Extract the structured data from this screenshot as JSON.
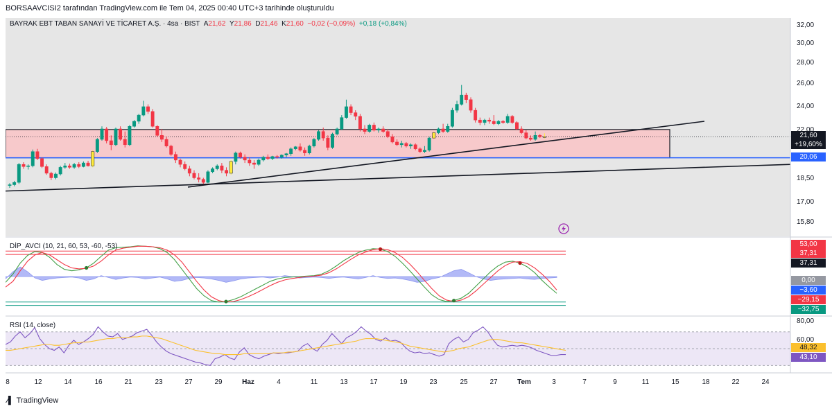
{
  "caption": "BORSAAVCISI2 tarafından TradingView.com ile Tem 04, 2025 00:40 UTC+3 tarihinde oluşturuldu",
  "brand": "TradingView",
  "colors": {
    "up": "#089981",
    "down": "#f23645",
    "doji": "#ffeb3b",
    "zone": "#f7c9cb",
    "support": "#2962ff",
    "rsi": "#7e57c2",
    "rsi_ma": "#fbc02d"
  },
  "main": {
    "symbol": "BAYRAK EBT TABAN SANAYİ VE TİCARET A.Ş. · 4sa · BIST",
    "open_label": "A",
    "open": "21,62",
    "high_label": "Y",
    "high": "21,86",
    "low_label": "D",
    "low": "21,46",
    "close_label": "K",
    "close": "21,60",
    "change": "−0,02 (−0,09%)",
    "vol_change": "+0,18 (+0,84%)",
    "price_badge": "21,60",
    "pct_badge": "+19,60%",
    "support_badge": "20,06",
    "axis_ticks": [
      "32,00",
      "30,00",
      "28,00",
      "26,00",
      "24,00",
      "22,00",
      "18,50",
      "17,00",
      "15,80"
    ]
  },
  "dip": {
    "label": "DİP_AVCI (10, 21, 60, 53, -60, -53)",
    "badges": [
      "53,00",
      "37,31",
      "37,31",
      "0,00",
      "−3,60",
      "−29,15",
      "−32,75"
    ]
  },
  "rsi": {
    "label": "RSI (14, close)",
    "axis_ticks": [
      "80,00",
      "60,00"
    ],
    "badges": [
      "48,32",
      "43,10"
    ]
  },
  "x_ticks": [
    "8",
    "12",
    "14",
    "16",
    "21",
    "23",
    "27",
    "29",
    "Haz",
    "4",
    "11",
    "13",
    "17",
    "19",
    "23",
    "25",
    "27",
    "Tem",
    "3",
    "7",
    "9",
    "11",
    "15",
    "18",
    "22",
    "24"
  ],
  "chart_data": [
    {
      "type": "candlestick",
      "title": "BAYRAK EBT TABAN SANAYİ VE TİCARET A.Ş. · 4sa · BIST",
      "ylim": [
        15.3,
        32.6
      ],
      "y_scale": "log",
      "grid": false,
      "candles": [
        [
          18.2,
          18.35,
          18.05,
          18.25
        ],
        [
          18.25,
          18.5,
          18.15,
          18.4
        ],
        [
          18.4,
          19.7,
          18.3,
          19.6
        ],
        [
          19.6,
          19.75,
          19.3,
          19.45
        ],
        [
          19.45,
          19.6,
          19.25,
          19.5
        ],
        [
          19.5,
          20.65,
          19.4,
          20.5
        ],
        [
          20.5,
          20.7,
          19.9,
          20.0
        ],
        [
          20.0,
          20.1,
          19.35,
          19.45
        ],
        [
          19.45,
          19.6,
          18.9,
          19.0
        ],
        [
          19.0,
          19.1,
          18.55,
          18.7
        ],
        [
          18.7,
          19.05,
          18.6,
          18.95
        ],
        [
          18.95,
          19.5,
          18.85,
          19.4
        ],
        [
          19.4,
          19.7,
          19.3,
          19.5
        ],
        [
          19.5,
          19.65,
          19.3,
          19.4
        ],
        [
          19.4,
          19.7,
          19.3,
          19.6
        ],
        [
          19.6,
          19.75,
          19.35,
          19.45
        ],
        [
          19.45,
          19.8,
          19.4,
          19.7
        ],
        [
          19.7,
          19.85,
          19.45,
          19.5
        ],
        [
          19.5,
          20.6,
          19.4,
          20.5
        ],
        [
          20.5,
          21.5,
          20.4,
          21.4
        ],
        [
          21.4,
          22.4,
          21.3,
          22.2
        ],
        [
          22.2,
          22.35,
          21.1,
          21.3
        ],
        [
          21.3,
          21.7,
          20.6,
          21.0
        ],
        [
          21.0,
          22.3,
          20.9,
          22.2
        ],
        [
          22.2,
          22.4,
          21.3,
          21.4
        ],
        [
          21.4,
          22.0,
          20.8,
          21.0
        ],
        [
          21.0,
          22.5,
          20.9,
          22.4
        ],
        [
          22.4,
          22.9,
          22.3,
          22.8
        ],
        [
          22.8,
          23.4,
          22.6,
          23.3
        ],
        [
          23.3,
          24.5,
          23.2,
          24.0
        ],
        [
          24.0,
          24.2,
          23.4,
          23.6
        ],
        [
          23.6,
          23.8,
          22.3,
          22.4
        ],
        [
          22.4,
          22.5,
          21.6,
          21.7
        ],
        [
          21.7,
          22.2,
          21.2,
          21.4
        ],
        [
          21.4,
          21.6,
          20.8,
          20.9
        ],
        [
          20.9,
          21.0,
          20.2,
          20.3
        ],
        [
          20.3,
          20.5,
          19.7,
          19.9
        ],
        [
          19.9,
          20.0,
          19.4,
          19.6
        ],
        [
          19.6,
          19.8,
          19.2,
          19.3
        ],
        [
          19.3,
          19.5,
          18.8,
          19.0
        ],
        [
          19.0,
          19.2,
          18.6,
          18.7
        ],
        [
          18.7,
          19.0,
          18.4,
          18.6
        ],
        [
          18.6,
          18.7,
          18.3,
          18.4
        ],
        [
          18.4,
          19.2,
          18.35,
          19.1
        ],
        [
          19.1,
          19.4,
          19.0,
          19.3
        ],
        [
          19.3,
          19.6,
          19.2,
          19.5
        ],
        [
          19.5,
          19.7,
          19.0,
          19.2
        ],
        [
          19.2,
          19.4,
          18.8,
          19.0
        ],
        [
          19.0,
          19.9,
          18.9,
          19.8
        ],
        [
          19.8,
          20.5,
          19.6,
          20.4
        ],
        [
          20.4,
          20.5,
          20.0,
          20.1
        ],
        [
          20.1,
          20.3,
          19.7,
          19.9
        ],
        [
          19.9,
          20.1,
          19.5,
          19.7
        ],
        [
          19.7,
          19.9,
          19.3,
          19.6
        ],
        [
          19.6,
          20.0,
          19.5,
          19.9
        ],
        [
          19.9,
          20.2,
          19.8,
          20.1
        ],
        [
          20.1,
          20.3,
          19.9,
          20.0
        ],
        [
          20.0,
          20.2,
          19.9,
          20.15
        ],
        [
          20.15,
          20.25,
          20.0,
          20.1
        ],
        [
          20.1,
          20.3,
          20.0,
          20.25
        ],
        [
          20.25,
          20.4,
          20.1,
          20.35
        ],
        [
          20.35,
          20.8,
          20.2,
          20.7
        ],
        [
          20.7,
          20.9,
          20.6,
          20.85
        ],
        [
          20.85,
          21.1,
          20.5,
          20.6
        ],
        [
          20.6,
          20.8,
          20.2,
          20.4
        ],
        [
          20.4,
          21.0,
          20.3,
          20.9
        ],
        [
          20.9,
          21.5,
          20.8,
          21.4
        ],
        [
          21.4,
          22.1,
          21.3,
          22.0
        ],
        [
          22.0,
          22.3,
          21.3,
          21.5
        ],
        [
          21.5,
          21.7,
          20.6,
          20.8
        ],
        [
          20.8,
          21.9,
          20.7,
          21.8
        ],
        [
          21.8,
          22.3,
          21.7,
          22.2
        ],
        [
          22.2,
          23.3,
          22.1,
          23.1
        ],
        [
          23.1,
          24.6,
          23.0,
          24.0
        ],
        [
          24.0,
          24.2,
          23.3,
          23.5
        ],
        [
          23.5,
          23.7,
          22.9,
          23.2
        ],
        [
          23.2,
          23.4,
          22.0,
          22.2
        ],
        [
          22.2,
          22.5,
          21.8,
          22.0
        ],
        [
          22.0,
          22.6,
          21.9,
          22.5
        ],
        [
          22.5,
          22.7,
          22.0,
          22.1
        ],
        [
          22.1,
          22.3,
          21.9,
          22.2
        ],
        [
          22.2,
          22.4,
          21.9,
          22.0
        ],
        [
          22.0,
          22.2,
          21.5,
          21.6
        ],
        [
          21.6,
          21.8,
          21.1,
          21.2
        ],
        [
          21.2,
          21.4,
          20.9,
          21.0
        ],
        [
          21.0,
          21.3,
          20.8,
          21.1
        ],
        [
          21.1,
          21.2,
          20.8,
          20.9
        ],
        [
          20.9,
          21.1,
          20.7,
          21.0
        ],
        [
          21.0,
          21.1,
          20.6,
          20.7
        ],
        [
          20.7,
          20.8,
          20.4,
          20.5
        ],
        [
          20.5,
          20.9,
          20.4,
          20.6
        ],
        [
          20.6,
          21.6,
          20.5,
          21.5
        ],
        [
          21.5,
          22.0,
          21.4,
          21.9
        ],
        [
          21.9,
          22.3,
          21.8,
          22.2
        ],
        [
          22.2,
          22.6,
          21.9,
          22.0
        ],
        [
          22.0,
          22.6,
          21.9,
          22.4
        ],
        [
          22.4,
          23.9,
          22.3,
          23.7
        ],
        [
          23.7,
          24.5,
          23.5,
          24.2
        ],
        [
          24.2,
          25.9,
          24.1,
          25.0
        ],
        [
          25.0,
          25.2,
          24.3,
          24.6
        ],
        [
          24.6,
          24.8,
          23.5,
          23.7
        ],
        [
          23.7,
          23.9,
          22.7,
          22.9
        ],
        [
          22.9,
          23.1,
          22.5,
          22.7
        ],
        [
          22.7,
          23.0,
          22.5,
          22.9
        ],
        [
          22.9,
          23.1,
          22.6,
          22.8
        ],
        [
          22.8,
          23.3,
          22.5,
          22.6
        ],
        [
          22.6,
          22.9,
          22.5,
          22.8
        ],
        [
          22.8,
          22.9,
          22.6,
          22.7
        ],
        [
          22.7,
          23.4,
          22.6,
          23.2
        ],
        [
          23.2,
          23.3,
          22.6,
          22.7
        ],
        [
          22.7,
          22.8,
          22.1,
          22.2
        ],
        [
          22.2,
          22.4,
          21.8,
          21.9
        ],
        [
          21.9,
          22.1,
          21.4,
          21.5
        ],
        [
          21.5,
          21.7,
          21.3,
          21.4
        ],
        [
          21.4,
          22.0,
          21.3,
          21.7
        ],
        [
          21.7,
          21.8,
          21.5,
          21.6
        ],
        [
          21.6,
          21.86,
          21.46,
          21.6
        ]
      ],
      "zone": {
        "top": 22.15,
        "bottom": 20.06
      },
      "support": 20.06,
      "last_price": 21.6
    },
    {
      "type": "line",
      "title": "DİP_AVCI (10, 21, 60, 53, -60, -53)",
      "ylim": [
        -75,
        75
      ],
      "levels": [
        53,
        46,
        -53,
        -60
      ],
      "series": [
        {
          "values": [
            -12,
            5,
            28,
            44,
            52,
            50,
            40,
            25,
            15,
            12,
            14,
            18,
            28,
            42,
            55,
            60,
            61,
            62,
            64,
            63,
            62,
            58,
            50,
            35,
            15,
            -5,
            -25,
            -40,
            -50,
            -53,
            -52,
            -48,
            -42,
            -34,
            -26,
            -18,
            -10,
            -5,
            -2,
            -1,
            0,
            1,
            2,
            5,
            12,
            22,
            33,
            42,
            50,
            55,
            58,
            57,
            52,
            42,
            28,
            12,
            -5,
            -22,
            -38,
            -48,
            -52,
            -50,
            -45,
            -35,
            -20,
            -5,
            10,
            22,
            30,
            32,
            28,
            20,
            8,
            -8,
            -22,
            -35
          ]
        },
        {
          "values": [
            -22,
            -10,
            12,
            32,
            45,
            50,
            45,
            35,
            25,
            18,
            16,
            17,
            22,
            32,
            45,
            55,
            59,
            61,
            63,
            63,
            62,
            60,
            55,
            45,
            30,
            10,
            -10,
            -28,
            -42,
            -50,
            -53,
            -52,
            -48,
            -42,
            -35,
            -27,
            -19,
            -12,
            -7,
            -4,
            -2,
            0,
            1,
            3,
            8,
            16,
            26,
            36,
            45,
            51,
            56,
            58,
            56,
            50,
            40,
            26,
            10,
            -8,
            -25,
            -40,
            -49,
            -52,
            -49,
            -42,
            -30,
            -16,
            -2,
            12,
            23,
            30,
            31,
            27,
            18,
            5,
            -10,
            -28
          ]
        },
        {
          "values": [
            -5,
            10,
            20,
            10,
            -3,
            -8,
            -5,
            -3,
            -2,
            -1,
            -3,
            -8,
            -5,
            2,
            -2,
            -6,
            -3,
            -1,
            -2,
            -5,
            -3,
            -1,
            -5,
            -10,
            -8,
            -4,
            -2,
            -3,
            -5,
            -8,
            -12,
            -9,
            -5,
            -3,
            -2,
            -1,
            -3,
            -1,
            2,
            0,
            -3,
            -2,
            -1,
            -2,
            -4,
            -2,
            -1,
            -3,
            -5,
            -2,
            2,
            -2,
            -4,
            -3,
            -5,
            -8,
            -12,
            -10,
            -5,
            -2,
            5,
            12,
            15,
            8,
            0,
            -5,
            -8,
            -6,
            -5,
            -4,
            -3,
            -5,
            -6,
            -4,
            -3,
            -2
          ]
        }
      ]
    },
    {
      "type": "line",
      "title": "RSI (14, close)",
      "ylim": [
        22,
        88
      ],
      "levels": [
        70,
        50,
        30
      ],
      "series": [
        {
          "values": [
            55,
            58,
            65,
            70,
            63,
            68,
            75,
            62,
            55,
            50,
            48,
            52,
            45,
            54,
            60,
            55,
            58,
            62,
            67,
            76,
            70,
            65,
            64,
            68,
            61,
            63,
            65,
            69,
            71,
            73,
            66,
            58,
            52,
            47,
            44,
            42,
            40,
            38,
            36,
            34,
            33,
            31,
            30,
            38,
            40,
            43,
            39,
            37,
            46,
            51,
            43,
            40,
            38,
            41,
            43,
            45,
            44,
            45,
            45,
            46,
            47,
            53,
            56,
            50,
            47,
            55,
            60,
            68,
            62,
            56,
            63,
            66,
            70,
            76,
            71,
            67,
            61,
            59,
            63,
            59,
            60,
            58,
            52,
            47,
            45,
            46,
            44,
            45,
            43,
            41,
            43,
            56,
            61,
            64,
            58,
            61,
            69,
            72,
            76,
            70,
            61,
            54,
            52,
            53,
            54,
            53,
            54,
            53,
            51,
            48,
            46,
            44,
            42,
            42,
            43,
            43
          ]
        },
        {
          "values": [
            48,
            48,
            49,
            50,
            51,
            52,
            53,
            54,
            55,
            55,
            54,
            54,
            55,
            56,
            57,
            57,
            58,
            58,
            59,
            60,
            61,
            62,
            62,
            63,
            63,
            63,
            64,
            64,
            65,
            65,
            64,
            63,
            62,
            60,
            58,
            56,
            54,
            52,
            50,
            48,
            47,
            46,
            45,
            44,
            44,
            43,
            43,
            43,
            43,
            44,
            44,
            44,
            44,
            44,
            44,
            45,
            45,
            45,
            46,
            46,
            47,
            48,
            49,
            50,
            51,
            52,
            53,
            54,
            55,
            56,
            57,
            58,
            59,
            61,
            62,
            62,
            62,
            61,
            60,
            59,
            58,
            57,
            55,
            53,
            52,
            51,
            50,
            49,
            48,
            47,
            46,
            47,
            48,
            50,
            51,
            52,
            54,
            56,
            58,
            60,
            61,
            61,
            60,
            59,
            58,
            57,
            57,
            56,
            55,
            54,
            53,
            52,
            51,
            50,
            49,
            48
          ]
        }
      ]
    }
  ]
}
